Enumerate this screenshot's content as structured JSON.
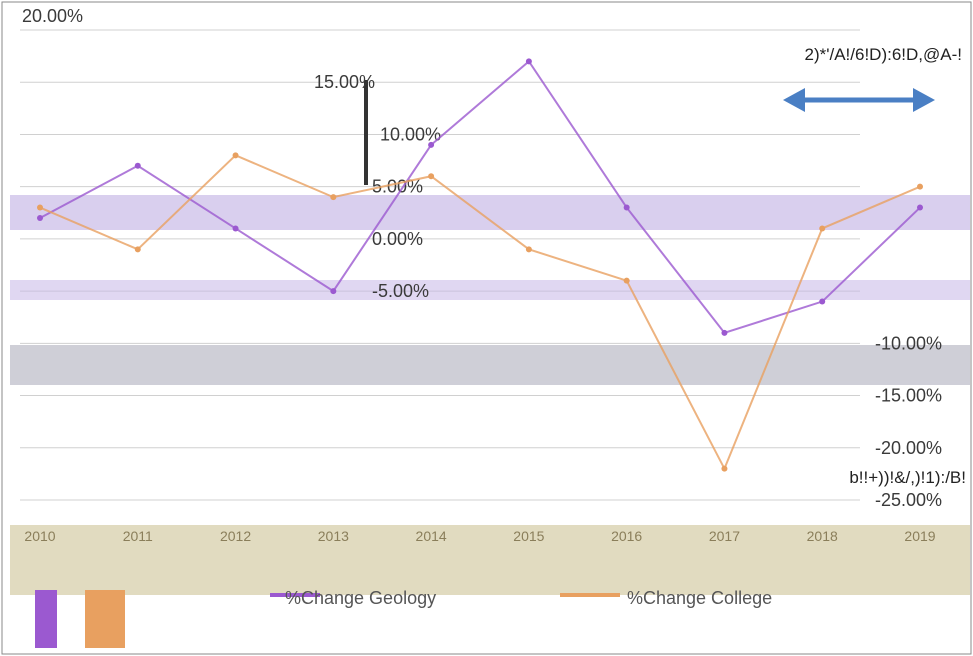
{
  "chart_data": {
    "type": "line",
    "title": "",
    "ylabel": "",
    "xlabel": "",
    "categories": [
      "2010",
      "2011",
      "2012",
      "2013",
      "2014",
      "2015",
      "2016",
      "2017",
      "2018",
      "2019"
    ],
    "y_ticks": [
      "20.00%",
      "15.00%",
      "10.00%",
      "5.00%",
      "0.00%",
      "-5.00%",
      "-10.00%",
      "-15.00%",
      "-20.00%",
      "-25.00%"
    ],
    "ylim": [
      -0.25,
      0.2
    ],
    "grid": true,
    "series": [
      {
        "name": "%Change Geology",
        "values": [
          0.02,
          0.07,
          0.01,
          -0.05,
          0.09,
          0.17,
          0.03,
          -0.09,
          -0.06,
          0.03
        ]
      },
      {
        "name": "%Change College",
        "values": [
          0.03,
          -0.01,
          0.08,
          0.04,
          0.06,
          -0.01,
          -0.04,
          -0.22,
          0.01,
          0.05
        ]
      }
    ],
    "annotations": {
      "top_right": "2)*'/A!/6!D):6!D,@A-!",
      "bottom_right": "b!!+))!&/,)!1):/B!"
    },
    "legend_position": "bottom",
    "colors": {
      "geology": "#9b59d0",
      "college": "#e8a060",
      "arrow": "#4a7fc4",
      "grid": "#d0d0d0",
      "axis": "#333333"
    }
  }
}
